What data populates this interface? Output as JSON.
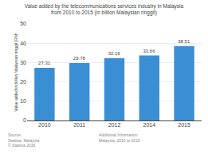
{
  "chart_data": {
    "type": "bar",
    "title": "Value added by the telecommunications services industry in Malaysia",
    "subtitle": "from 2010 to 2015 (in billion Malaysian ringgit)",
    "categories": [
      "2010",
      "2011",
      "2012",
      "2014",
      "2015"
    ],
    "values": [
      27.31,
      29.78,
      32.19,
      33.66,
      38.51
    ],
    "color": "#3a8fd4",
    "ylabel": "Value added in billion Malaysian ringgit (RM)",
    "ylim": [
      0,
      50
    ],
    "yticks": [
      0,
      10,
      20,
      30,
      40,
      50
    ],
    "grid": true,
    "data_labels": true,
    "annotations": [
      "Source:\nStatista, Malaysia\n© Statista 2016",
      "Additional Information:\nMalaysia, 2010 to 2015"
    ]
  }
}
